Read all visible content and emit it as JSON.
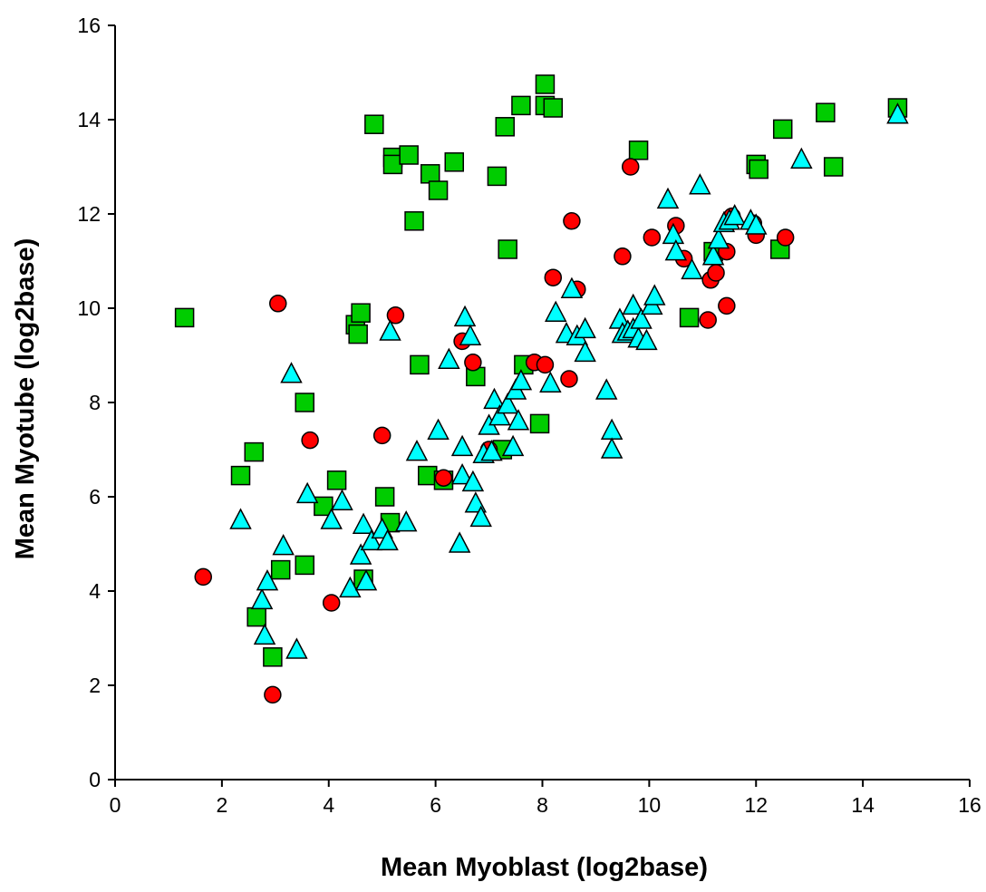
{
  "chart_data": {
    "type": "scatter",
    "xlabel": "Mean Myoblast (log2base)",
    "ylabel": "Mean Myotube (log2base)",
    "xlim": [
      0,
      16
    ],
    "ylim": [
      0,
      16
    ],
    "xticks": [
      "0",
      "2",
      "4",
      "6",
      "8",
      "10",
      "12",
      "14",
      "16"
    ],
    "yticks": [
      "0",
      "2",
      "4",
      "6",
      "8",
      "10",
      "12",
      "14",
      "16"
    ],
    "grid": false,
    "legend": "none",
    "series": [
      {
        "marker": "square",
        "color": "#00cc00",
        "points": [
          [
            1.3,
            9.8
          ],
          [
            2.35,
            6.45
          ],
          [
            2.6,
            6.95
          ],
          [
            2.65,
            3.45
          ],
          [
            2.95,
            2.6
          ],
          [
            3.1,
            4.45
          ],
          [
            3.55,
            4.55
          ],
          [
            3.55,
            8.0
          ],
          [
            3.9,
            5.8
          ],
          [
            4.15,
            6.35
          ],
          [
            4.5,
            9.65
          ],
          [
            4.6,
            9.9
          ],
          [
            4.55,
            9.45
          ],
          [
            4.65,
            4.25
          ],
          [
            5.05,
            6.0
          ],
          [
            5.15,
            5.45
          ],
          [
            4.85,
            13.9
          ],
          [
            5.2,
            13.2
          ],
          [
            5.2,
            13.05
          ],
          [
            5.5,
            13.25
          ],
          [
            5.6,
            11.85
          ],
          [
            5.7,
            8.8
          ],
          [
            5.85,
            6.45
          ],
          [
            5.9,
            12.85
          ],
          [
            6.05,
            12.5
          ],
          [
            6.15,
            6.35
          ],
          [
            6.35,
            13.1
          ],
          [
            6.75,
            8.55
          ],
          [
            7.15,
            12.8
          ],
          [
            7.3,
            13.85
          ],
          [
            7.35,
            11.25
          ],
          [
            7.6,
            14.3
          ],
          [
            7.65,
            8.8
          ],
          [
            7.25,
            7.0
          ],
          [
            7.95,
            7.55
          ],
          [
            8.05,
            14.3
          ],
          [
            8.05,
            14.75
          ],
          [
            8.2,
            14.25
          ],
          [
            9.8,
            13.35
          ],
          [
            10.75,
            9.8
          ],
          [
            11.2,
            11.2
          ],
          [
            12.0,
            13.05
          ],
          [
            12.05,
            12.95
          ],
          [
            12.45,
            11.25
          ],
          [
            12.5,
            13.8
          ],
          [
            13.3,
            14.15
          ],
          [
            13.45,
            13.0
          ],
          [
            14.65,
            14.25
          ]
        ]
      },
      {
        "marker": "circle",
        "color": "#ff0000",
        "points": [
          [
            1.65,
            4.3
          ],
          [
            2.95,
            1.8
          ],
          [
            3.05,
            10.1
          ],
          [
            3.65,
            7.2
          ],
          [
            4.05,
            3.75
          ],
          [
            5.0,
            7.3
          ],
          [
            5.25,
            9.85
          ],
          [
            6.15,
            6.4
          ],
          [
            6.5,
            9.3
          ],
          [
            6.7,
            8.85
          ],
          [
            7.0,
            7.0
          ],
          [
            7.85,
            8.85
          ],
          [
            8.05,
            8.8
          ],
          [
            8.2,
            10.65
          ],
          [
            8.5,
            8.5
          ],
          [
            8.55,
            11.85
          ],
          [
            8.65,
            10.4
          ],
          [
            9.5,
            11.1
          ],
          [
            9.65,
            13.0
          ],
          [
            10.05,
            11.5
          ],
          [
            10.5,
            11.75
          ],
          [
            10.65,
            11.05
          ],
          [
            11.1,
            9.75
          ],
          [
            11.15,
            10.6
          ],
          [
            11.25,
            10.75
          ],
          [
            11.45,
            10.05
          ],
          [
            11.45,
            11.2
          ],
          [
            11.55,
            11.95
          ],
          [
            11.95,
            11.8
          ],
          [
            12.0,
            11.55
          ],
          [
            12.55,
            11.5
          ]
        ]
      },
      {
        "marker": "triangle",
        "color": "#00ffff",
        "points": [
          [
            2.35,
            5.5
          ],
          [
            2.75,
            3.8
          ],
          [
            2.8,
            3.05
          ],
          [
            2.85,
            4.2
          ],
          [
            3.15,
            4.95
          ],
          [
            3.3,
            8.6
          ],
          [
            3.4,
            2.75
          ],
          [
            3.6,
            6.05
          ],
          [
            4.05,
            5.5
          ],
          [
            4.25,
            5.9
          ],
          [
            4.4,
            4.05
          ],
          [
            4.6,
            4.75
          ],
          [
            4.7,
            4.2
          ],
          [
            4.65,
            5.4
          ],
          [
            4.8,
            5.05
          ],
          [
            5.0,
            5.3
          ],
          [
            5.1,
            5.05
          ],
          [
            5.15,
            9.5
          ],
          [
            5.45,
            5.45
          ],
          [
            5.65,
            6.95
          ],
          [
            6.05,
            7.4
          ],
          [
            6.25,
            8.9
          ],
          [
            6.45,
            5.0
          ],
          [
            6.5,
            7.05
          ],
          [
            6.5,
            6.45
          ],
          [
            6.55,
            9.8
          ],
          [
            6.65,
            9.4
          ],
          [
            6.7,
            6.3
          ],
          [
            6.75,
            5.85
          ],
          [
            6.85,
            5.55
          ],
          [
            6.9,
            6.9
          ],
          [
            7.0,
            7.5
          ],
          [
            7.05,
            6.95
          ],
          [
            7.1,
            8.05
          ],
          [
            7.2,
            7.7
          ],
          [
            7.35,
            7.95
          ],
          [
            7.45,
            7.05
          ],
          [
            7.5,
            8.25
          ],
          [
            7.55,
            7.6
          ],
          [
            7.6,
            8.45
          ],
          [
            8.15,
            8.4
          ],
          [
            8.25,
            9.9
          ],
          [
            8.45,
            9.45
          ],
          [
            8.55,
            10.4
          ],
          [
            8.65,
            9.4
          ],
          [
            8.8,
            9.05
          ],
          [
            8.8,
            9.55
          ],
          [
            9.2,
            8.25
          ],
          [
            9.3,
            7.4
          ],
          [
            9.3,
            7.0
          ],
          [
            9.45,
            9.75
          ],
          [
            9.5,
            9.45
          ],
          [
            9.6,
            9.5
          ],
          [
            9.7,
            9.55
          ],
          [
            9.7,
            10.05
          ],
          [
            9.8,
            9.35
          ],
          [
            9.85,
            9.75
          ],
          [
            9.95,
            9.3
          ],
          [
            10.05,
            10.05
          ],
          [
            10.1,
            10.25
          ],
          [
            10.35,
            12.3
          ],
          [
            10.45,
            11.55
          ],
          [
            10.5,
            11.2
          ],
          [
            10.8,
            10.8
          ],
          [
            10.95,
            12.6
          ],
          [
            11.2,
            11.1
          ],
          [
            11.3,
            11.45
          ],
          [
            11.4,
            11.8
          ],
          [
            11.5,
            11.85
          ],
          [
            11.6,
            11.95
          ],
          [
            11.9,
            11.85
          ],
          [
            12.0,
            11.75
          ],
          [
            12.85,
            13.15
          ],
          [
            14.65,
            14.1
          ]
        ]
      }
    ]
  }
}
